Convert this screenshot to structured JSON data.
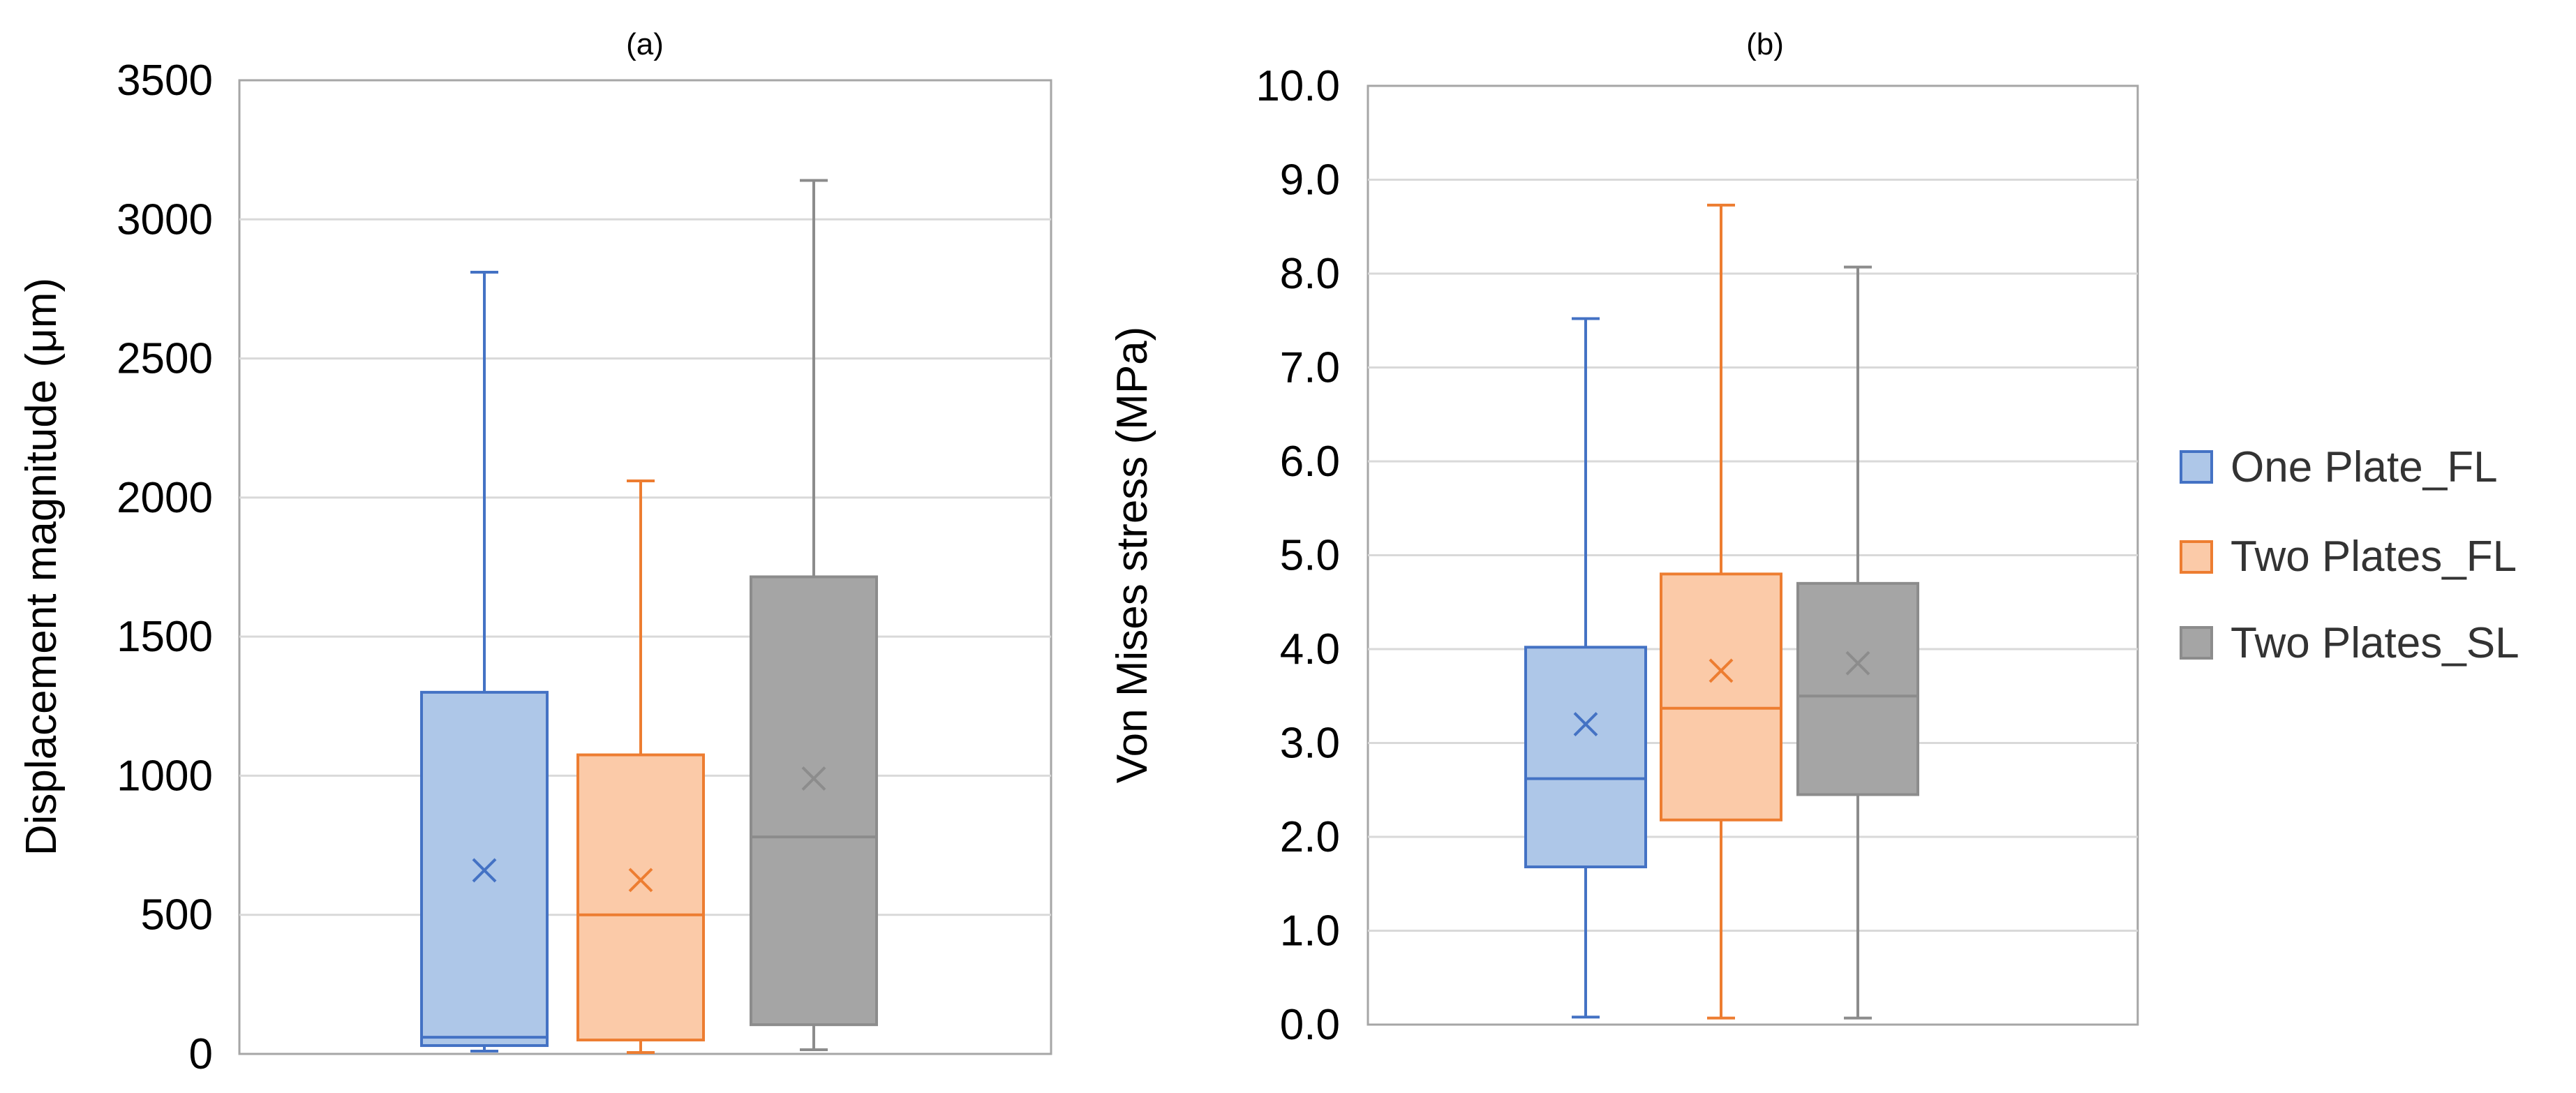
{
  "chart_data": [
    {
      "type": "box",
      "title": "(a)",
      "xlabel": "",
      "ylabel": "Displacement magnitude (μm)",
      "ylim": [
        0,
        3500
      ],
      "yticks": [
        0,
        500,
        1000,
        1500,
        2000,
        2500,
        3000,
        3500
      ],
      "ytick_labels": [
        "0",
        "500",
        "1000",
        "1500",
        "2000",
        "2500",
        "3000",
        "3500"
      ],
      "grid": true,
      "series": [
        {
          "name": "One Plate_FL",
          "min": 10,
          "q1": 30,
          "median": 60,
          "q3": 1300,
          "max": 2810,
          "mean": 660
        },
        {
          "name": "Two Plates_FL",
          "min": 5,
          "q1": 50,
          "median": 500,
          "q3": 1075,
          "max": 2060,
          "mean": 625
        },
        {
          "name": "Two Plates_SL",
          "min": 15,
          "q1": 105,
          "median": 780,
          "q3": 1715,
          "max": 3140,
          "mean": 990
        }
      ]
    },
    {
      "type": "box",
      "title": "(b)",
      "xlabel": "",
      "ylabel": "Von Mises stress (MPa)",
      "ylim": [
        0,
        10
      ],
      "yticks": [
        0,
        1,
        2,
        3,
        4,
        5,
        6,
        7,
        8,
        9,
        10
      ],
      "ytick_labels": [
        "0.0",
        "1.0",
        "2.0",
        "3.0",
        "4.0",
        "5.0",
        "6.0",
        "7.0",
        "8.0",
        "9.0",
        "10.0"
      ],
      "grid": true,
      "legend_position": "right",
      "series": [
        {
          "name": "One Plate_FL",
          "min": 0.08,
          "q1": 1.68,
          "median": 2.62,
          "q3": 4.02,
          "max": 7.52,
          "mean": 3.2
        },
        {
          "name": "Two Plates_FL",
          "min": 0.07,
          "q1": 2.18,
          "median": 3.37,
          "q3": 4.8,
          "max": 8.73,
          "mean": 3.77
        },
        {
          "name": "Two Plates_SL",
          "min": 0.07,
          "q1": 2.45,
          "median": 3.5,
          "q3": 4.7,
          "max": 8.07,
          "mean": 3.85
        }
      ]
    }
  ],
  "legend": {
    "items": [
      {
        "label": "One Plate_FL",
        "fill": "#aec7e8",
        "stroke": "#4472c4"
      },
      {
        "label": "Two Plates_FL",
        "fill": "#fbcaa8",
        "stroke": "#ed7d31"
      },
      {
        "label": "Two Plates_SL",
        "fill": "#a5a5a5",
        "stroke": "#8c8c8c"
      }
    ]
  },
  "colors": {
    "one_plate_fill": "#aec7e8",
    "one_plate_stroke": "#4472c4",
    "two_plates_fl_fill": "#fbcaa8",
    "two_plates_fl_stroke": "#ed7d31",
    "two_plates_sl_fill": "#a5a5a5",
    "two_plates_sl_stroke": "#8c8c8c",
    "gridline": "#d9d9d9",
    "frame": "#a6a6a6"
  }
}
